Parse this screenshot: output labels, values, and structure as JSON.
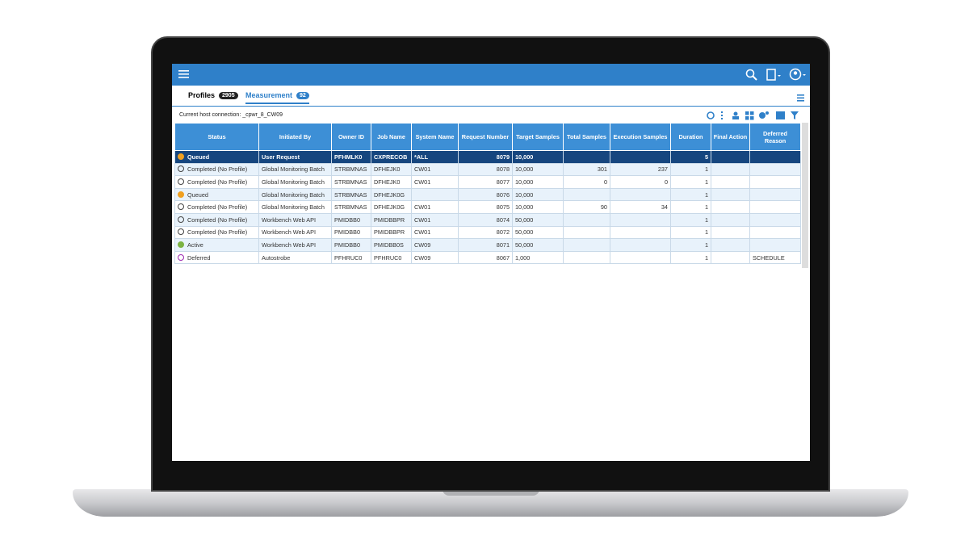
{
  "tabs": [
    {
      "label": "Profiles",
      "count": 2905
    },
    {
      "label": "Measurement",
      "count": 92
    }
  ],
  "host_connection": "Current host connection: _cpwr_8_CW09",
  "table": {
    "columns": [
      "Status",
      "Initiated By",
      "Owner ID",
      "Job Name",
      "System Name",
      "Request Number",
      "Target Samples",
      "Total Samples",
      "Execution Samples",
      "Duration",
      "Final Action",
      "Deferred Reason"
    ],
    "rows": [
      [
        "Queued",
        "User Request",
        "PFHMLK0",
        "CXPRECOB",
        "*ALL",
        8079,
        "10,000",
        null,
        null,
        5,
        null,
        null
      ],
      [
        "Completed (No Profile)",
        "Global Monitoring Batch",
        "STRBMNAS",
        "DFHEJK0",
        "CW01",
        8078,
        "10,000",
        301,
        237,
        1,
        null,
        null
      ],
      [
        "Completed (No Profile)",
        "Global Monitoring Batch",
        "STRBMNAS",
        "DFHEJK0",
        "CW01",
        8077,
        "10,000",
        0,
        0,
        1,
        null,
        null
      ],
      [
        "Queued",
        "Global Monitoring Batch",
        "STRBMNAS",
        "DFHEJK0G",
        null,
        8076,
        "10,000",
        null,
        null,
        1,
        null,
        null
      ],
      [
        "Completed (No Profile)",
        "Global Monitoring Batch",
        "STRBMNAS",
        "DFHEJK0G",
        "CW01",
        8075,
        "10,000",
        90,
        34,
        1,
        null,
        null
      ],
      [
        "Completed (No Profile)",
        "Workbench Web API",
        "PMIDBB0",
        "PMIDBBPR",
        "CW01",
        8074,
        "50,000",
        null,
        null,
        1,
        null,
        null
      ],
      [
        "Completed (No Profile)",
        "Workbench Web API",
        "PMIDBB0",
        "PMIDBBPR",
        "CW01",
        8072,
        "50,000",
        null,
        null,
        1,
        null,
        null
      ],
      [
        "Active",
        "Workbench Web API",
        "PMIDBB0",
        "PMIDBB0S",
        "CW09",
        8071,
        "50,000",
        null,
        null,
        1,
        null,
        null
      ],
      [
        "Deferred",
        "Autostrobe",
        "PFHRUC0",
        "PFHRUC0",
        "CW09",
        8067,
        "1,000",
        null,
        null,
        1,
        null,
        "SCHEDULE"
      ]
    ]
  }
}
